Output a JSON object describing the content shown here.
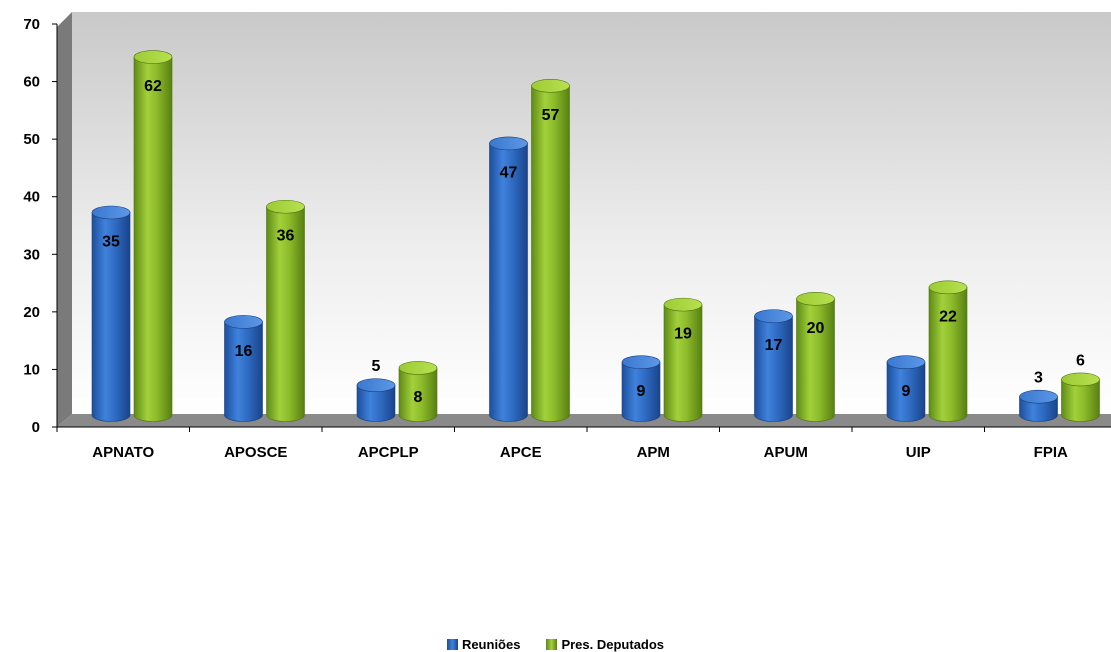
{
  "chart_data": {
    "type": "bar",
    "categories": [
      "APNATO",
      "APOSCE",
      "APCPLP",
      "APCE",
      "APM",
      "APUM",
      "UIP",
      "FPIA"
    ],
    "series": [
      {
        "name": "Reuniões",
        "values": [
          35,
          16,
          5,
          47,
          9,
          17,
          9,
          3
        ],
        "color": "#2E6DC8"
      },
      {
        "name": "Pres. Deputados",
        "values": [
          62,
          36,
          8,
          57,
          19,
          20,
          22,
          6
        ],
        "color": "#8CBA2C"
      }
    ],
    "title": "",
    "xlabel": "",
    "ylabel": "",
    "ylim": [
      0,
      70
    ],
    "yticks": [
      0,
      10,
      20,
      30,
      40,
      50,
      60,
      70
    ],
    "grid": false,
    "legend_position": "bottom"
  }
}
